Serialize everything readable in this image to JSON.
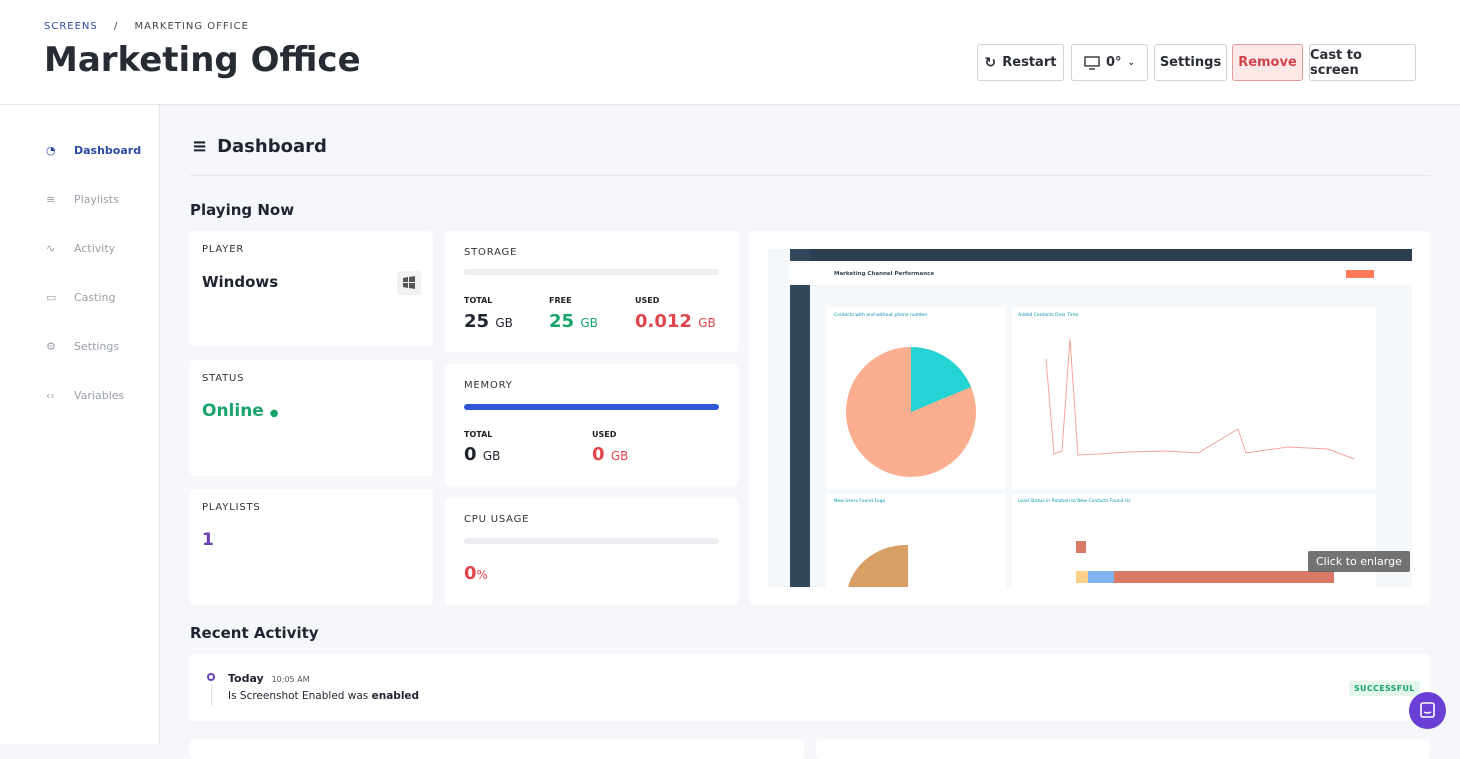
{
  "breadcrumb": {
    "items": [
      "SCREENS",
      "MARKETING OFFICE"
    ],
    "separator": "/"
  },
  "header": {
    "title": "Marketing Office",
    "actions": [
      "Restart",
      "0°",
      "Settings",
      "Remove",
      "Cast to screen"
    ]
  },
  "sidebar": {
    "items": [
      "Dashboard",
      "Playlists",
      "Activity",
      "Casting",
      "Settings",
      "Variables"
    ]
  },
  "section_title": "Dashboard",
  "playing_now": {
    "title": "Playing Now",
    "player": {
      "label": "PLAYER",
      "value": "Windows"
    },
    "status": {
      "label": "STATUS",
      "value": "Online"
    },
    "playlists": {
      "label": "PLAYLISTS",
      "value": 1
    },
    "storage": {
      "label": "STORAGE",
      "total_label": "TOTAL",
      "total": 25,
      "free_label": "FREE",
      "free": 25,
      "used_label": "USED",
      "used": 0.012,
      "unit": "GB"
    },
    "memory": {
      "label": "MEMORY",
      "total_label": "TOTAL",
      "total": 0,
      "used_label": "USED",
      "used": 0,
      "unit": "GB"
    },
    "cpu": {
      "label": "CPU USAGE",
      "value": 0,
      "unit": "%"
    },
    "preview": {
      "dashboard_title": "Marketing Channel Performance",
      "panels": [
        "Contacts with and without phone number",
        "Added Contacts Over Time",
        "New Users Found Fuga",
        "Lead Status in Relation to New Contacts Found Us"
      ],
      "hint": "Click to enlarge"
    }
  },
  "recent_activity": {
    "title": "Recent Activity",
    "items": [
      {
        "day": "Today",
        "time": "10:05 AM",
        "text": "Is Screenshot Enabled was",
        "emphasis": "enabled",
        "status": "SUCCESSFUL"
      }
    ]
  }
}
